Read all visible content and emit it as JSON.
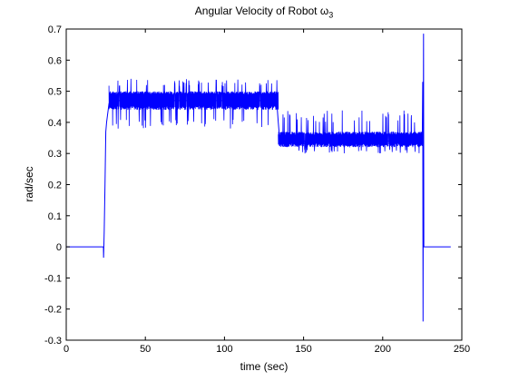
{
  "chart_data": {
    "type": "line",
    "title": "Angular Velocity of Robot ω",
    "title_subscript": "3",
    "xlabel": "time (sec)",
    "ylabel": "rad/sec",
    "xlim": [
      0,
      250
    ],
    "ylim": [
      -0.3,
      0.7
    ],
    "xticks": [
      0,
      50,
      100,
      150,
      200,
      250
    ],
    "yticks": [
      -0.3,
      -0.2,
      -0.1,
      0,
      0.1,
      0.2,
      0.3,
      0.4,
      0.5,
      0.6,
      0.7
    ],
    "ytick_labels": [
      "-0.3",
      "-0.2",
      "-0.1",
      "0",
      "0.1",
      "0.2",
      "0.3",
      "0.4",
      "0.5",
      "0.6",
      "0.7"
    ],
    "grid": false,
    "line_color": "#0000ff",
    "series": [
      {
        "name": "",
        "x": [
          0,
          23.5,
          23.6,
          24,
          24.5,
          25,
          25.5,
          26,
          26.5,
          27,
          28,
          29,
          30,
          40,
          50,
          60,
          70,
          80,
          90,
          100,
          110,
          120,
          130,
          133,
          134,
          135,
          150,
          175,
          200,
          215,
          225,
          225.3,
          225.5,
          225.8,
          226,
          226.2,
          243
        ],
        "y": [
          0,
          0,
          -0.035,
          0.05,
          0.2,
          0.37,
          0.4,
          0.42,
          0.44,
          0.46,
          0.47,
          0.47,
          0.47,
          0.47,
          0.47,
          0.47,
          0.47,
          0.47,
          0.47,
          0.47,
          0.47,
          0.47,
          0.47,
          0.47,
          0.4,
          0.34,
          0.34,
          0.34,
          0.34,
          0.34,
          0.34,
          0.53,
          -0.24,
          0.685,
          0,
          0,
          0
        ]
      }
    ],
    "noise_bands": [
      {
        "x_start": 27,
        "x_end": 134,
        "typical_low": 0.44,
        "typical_high": 0.5,
        "min": 0.38,
        "max": 0.54
      },
      {
        "x_start": 134,
        "x_end": 225,
        "typical_low": 0.32,
        "typical_high": 0.37,
        "min": 0.3,
        "max": 0.44
      }
    ]
  }
}
